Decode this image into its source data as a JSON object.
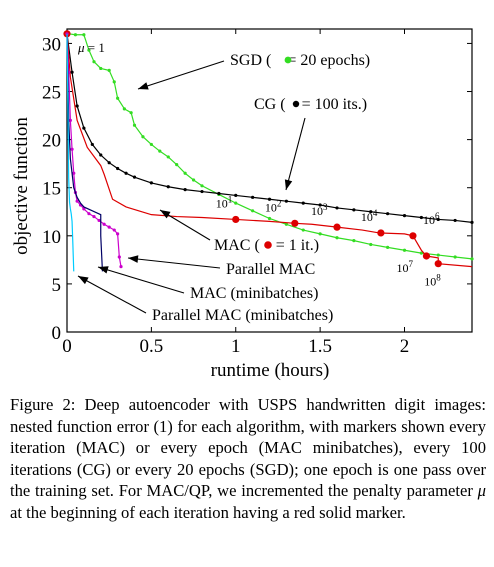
{
  "chart_data": {
    "type": "line",
    "xlabel": "runtime (hours)",
    "ylabel": "objective function",
    "xlim": [
      0,
      2.4
    ],
    "ylim": [
      0,
      31.5
    ],
    "x_ticks": [
      0,
      0.5,
      1,
      1.5,
      2
    ],
    "x_tick_labels": [
      "0",
      "0.5",
      "1",
      "1.5",
      "2"
    ],
    "y_ticks": [
      0,
      5,
      10,
      15,
      20,
      25,
      30
    ],
    "y_tick_labels": [
      "0",
      "5",
      "10",
      "15",
      "20",
      "25",
      "30"
    ],
    "grid": false,
    "series": [
      {
        "name": "SGD",
        "color": "#33dd22",
        "marker_color": "#33dd22",
        "points": [
          [
            0,
            31
          ],
          [
            0.01,
            31
          ],
          [
            0.05,
            30.9
          ],
          [
            0.1,
            30.9
          ],
          [
            0.13,
            29.3
          ],
          [
            0.16,
            28.1
          ],
          [
            0.2,
            27.4
          ],
          [
            0.25,
            27.2
          ],
          [
            0.28,
            26.0
          ],
          [
            0.3,
            24.3
          ],
          [
            0.34,
            23.2
          ],
          [
            0.38,
            22.8
          ],
          [
            0.4,
            21.5
          ],
          [
            0.45,
            20.3
          ],
          [
            0.5,
            19.5
          ],
          [
            0.55,
            18.8
          ],
          [
            0.6,
            18.2
          ],
          [
            0.65,
            17.4
          ],
          [
            0.7,
            16.5
          ],
          [
            0.75,
            15.8
          ],
          [
            0.8,
            15.2
          ],
          [
            0.9,
            14.3
          ],
          [
            1.0,
            13.4
          ],
          [
            1.1,
            12.6
          ],
          [
            1.2,
            11.8
          ],
          [
            1.3,
            11.2
          ],
          [
            1.4,
            10.6
          ],
          [
            1.5,
            10.2
          ],
          [
            1.6,
            9.8
          ],
          [
            1.7,
            9.5
          ],
          [
            1.8,
            9.1
          ],
          [
            1.9,
            8.8
          ],
          [
            2.0,
            8.5
          ],
          [
            2.1,
            8.2
          ],
          [
            2.2,
            8.0
          ],
          [
            2.3,
            7.8
          ],
          [
            2.4,
            7.6
          ]
        ],
        "marker_every": 1
      },
      {
        "name": "CG",
        "color": "#000000",
        "marker_color": "#000000",
        "points": [
          [
            0,
            31
          ],
          [
            0.03,
            27
          ],
          [
            0.06,
            23.5
          ],
          [
            0.1,
            21.2
          ],
          [
            0.15,
            19.5
          ],
          [
            0.2,
            18.4
          ],
          [
            0.25,
            17.6
          ],
          [
            0.3,
            17.0
          ],
          [
            0.35,
            16.5
          ],
          [
            0.4,
            16.1
          ],
          [
            0.5,
            15.5
          ],
          [
            0.6,
            15.1
          ],
          [
            0.7,
            14.8
          ],
          [
            0.8,
            14.6
          ],
          [
            0.9,
            14.4
          ],
          [
            1.0,
            14.2
          ],
          [
            1.1,
            14.0
          ],
          [
            1.2,
            13.8
          ],
          [
            1.3,
            13.6
          ],
          [
            1.4,
            13.4
          ],
          [
            1.5,
            13.2
          ],
          [
            1.6,
            12.9
          ],
          [
            1.7,
            12.7
          ],
          [
            1.8,
            12.5
          ],
          [
            1.9,
            12.3
          ],
          [
            2.0,
            12.1
          ],
          [
            2.1,
            11.9
          ],
          [
            2.2,
            11.7
          ],
          [
            2.3,
            11.6
          ],
          [
            2.4,
            11.4
          ]
        ],
        "marker_every": 1
      },
      {
        "name": "MAC",
        "color": "#dd0000",
        "marker_color": "#dd0000",
        "points": [
          [
            0,
            31
          ],
          [
            0.02,
            26.5
          ],
          [
            0.06,
            22
          ],
          [
            0.12,
            19.2
          ],
          [
            0.2,
            17.3
          ],
          [
            0.22,
            16.4
          ],
          [
            0.27,
            13.8
          ],
          [
            0.35,
            13.0
          ],
          [
            0.5,
            12.2
          ],
          [
            0.65,
            12.0
          ],
          [
            0.8,
            11.9
          ],
          [
            1.0,
            11.7
          ],
          [
            1.2,
            11.5
          ],
          [
            1.35,
            11.3
          ],
          [
            1.45,
            11.2
          ],
          [
            1.6,
            10.9
          ],
          [
            1.75,
            10.6
          ],
          [
            1.85,
            10.3
          ],
          [
            2.0,
            10.2
          ],
          [
            2.05,
            10.0
          ],
          [
            2.1,
            8.5
          ],
          [
            2.13,
            7.9
          ],
          [
            2.2,
            7.7
          ],
          [
            2.2,
            7.1
          ],
          [
            2.4,
            6.8
          ]
        ],
        "markers": [
          [
            0,
            31
          ],
          [
            1.0,
            11.7
          ],
          [
            1.35,
            11.3
          ],
          [
            1.6,
            10.9
          ],
          [
            1.86,
            10.3
          ],
          [
            2.05,
            10.0
          ],
          [
            2.13,
            7.9
          ],
          [
            2.2,
            7.1
          ]
        ],
        "marker_every": 1
      },
      {
        "name": "Parallel MAC",
        "color": "#00ccff",
        "points": [
          [
            0,
            31
          ],
          [
            0.005,
            24
          ],
          [
            0.01,
            16
          ],
          [
            0.015,
            13.5
          ],
          [
            0.02,
            12.8
          ],
          [
            0.025,
            12.3
          ],
          [
            0.03,
            11.5
          ],
          [
            0.035,
            9
          ],
          [
            0.04,
            6.3
          ]
        ]
      },
      {
        "name": "MAC (minibatches)",
        "color": "#000066",
        "points": [
          [
            0,
            31
          ],
          [
            0.01,
            22
          ],
          [
            0.02,
            18
          ],
          [
            0.04,
            15
          ],
          [
            0.06,
            14
          ],
          [
            0.08,
            13.4
          ],
          [
            0.1,
            13.0
          ],
          [
            0.15,
            12.6
          ],
          [
            0.2,
            12.2
          ],
          [
            0.2,
            10.0
          ],
          [
            0.21,
            6.3
          ]
        ]
      },
      {
        "name": "Parallel MAC (minibatches)",
        "color": "#cc00cc",
        "marker_color": "#cc00cc",
        "points": [
          [
            0,
            31
          ],
          [
            0.01,
            27
          ],
          [
            0.02,
            22
          ],
          [
            0.03,
            19
          ],
          [
            0.04,
            16.5
          ],
          [
            0.05,
            14.5
          ],
          [
            0.06,
            13.6
          ],
          [
            0.08,
            13.2
          ],
          [
            0.1,
            12.8
          ],
          [
            0.13,
            12.3
          ],
          [
            0.16,
            12.0
          ],
          [
            0.19,
            11.6
          ],
          [
            0.22,
            11.2
          ],
          [
            0.25,
            10.9
          ],
          [
            0.28,
            10.6
          ],
          [
            0.3,
            10.2
          ],
          [
            0.31,
            7.8
          ],
          [
            0.32,
            6.8
          ]
        ],
        "marker_every": 1
      }
    ],
    "annotations": {
      "mu": "= 1",
      "sgd_label_prefix": "SGD (",
      "sgd_label_suffix": " = 20 epochs)",
      "cg_label_prefix": "CG (",
      "cg_label_suffix": " = 100 its.)",
      "mac_label_prefix": "MAC (",
      "mac_label_suffix": " = 1 it.)",
      "pmac_label": "Parallel MAC",
      "macmb_label": "MAC (minibatches)",
      "pmacmb_label": "Parallel MAC (minibatches)",
      "iteration_labels": [
        {
          "base": "10",
          "exp": "1",
          "x": 1.0,
          "y": 11.7
        },
        {
          "base": "10",
          "exp": "2",
          "x": 1.35,
          "y": 11.3
        },
        {
          "base": "10",
          "exp": "3",
          "x": 1.6,
          "y": 10.9
        },
        {
          "base": "10",
          "exp": "4",
          "x": 1.86,
          "y": 10.3
        },
        {
          "base": "10",
          "exp": "6",
          "x": 2.05,
          "y": 10.0
        },
        {
          "base": "10",
          "exp": "7",
          "x": 2.13,
          "y": 7.9
        },
        {
          "base": "10",
          "exp": "8",
          "x": 2.2,
          "y": 7.1
        }
      ]
    }
  },
  "caption": {
    "lead": "Figure 2: Deep autoencoder with USPS handwritten digit images: nested function error (1) for each algorithm, with markers shown every iteration (MAC) or every epoch (MAC minibatches), every 100 iterations (CG) or every 20 epochs (SGD); one epoch is one pass over the training set. For MAC/QP, we incremented the penalty parameter ",
    "mu": "μ",
    "tail": " at the beginning of each iteration having a red solid marker."
  }
}
